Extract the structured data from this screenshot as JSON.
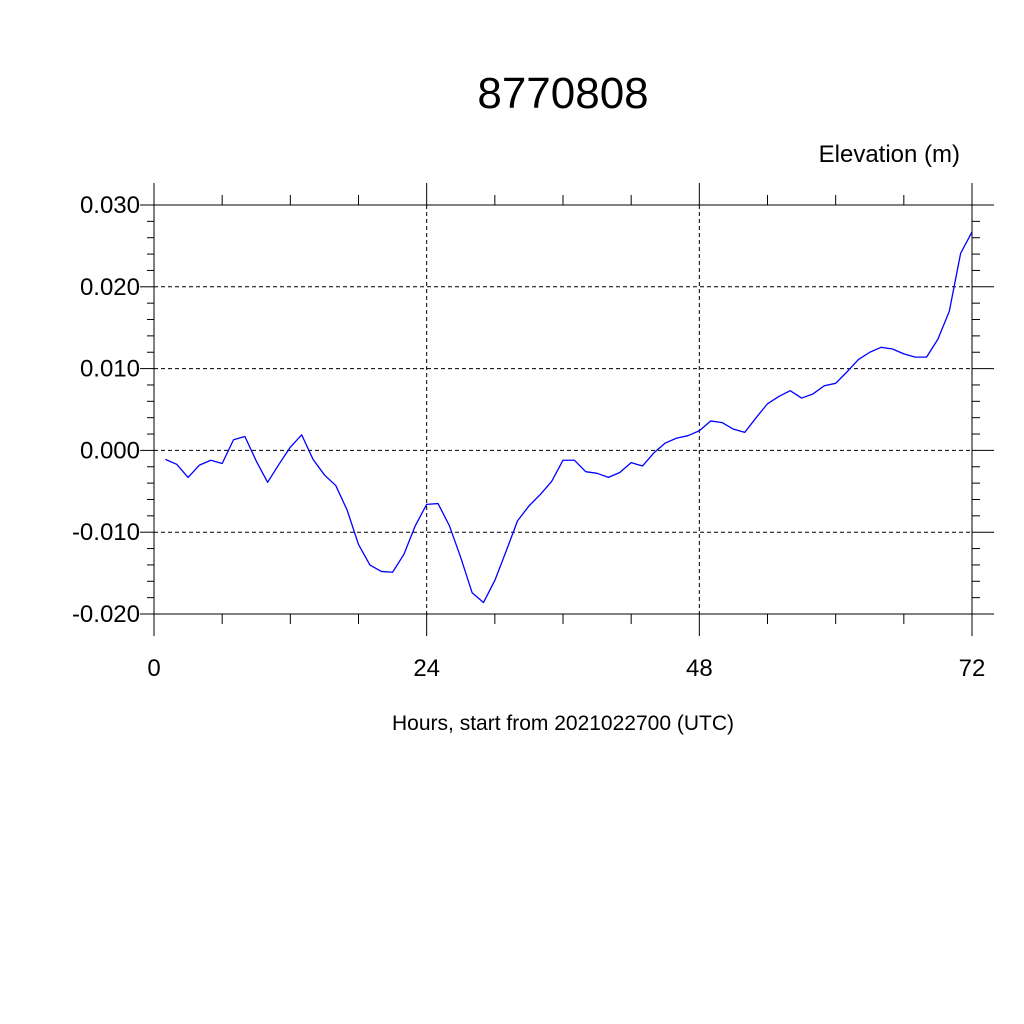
{
  "chart_data": {
    "type": "line",
    "title": "8770808",
    "units_label": "Elevation (m)",
    "xlabel": "Hours, start from 2021022700 (UTC)",
    "ylabel": "",
    "xlim": [
      0,
      72
    ],
    "ylim": [
      -0.02,
      0.03
    ],
    "x_ticks": [
      0,
      24,
      48,
      72
    ],
    "x_tick_labels": [
      "0",
      "24",
      "48",
      "72"
    ],
    "y_ticks": [
      -0.02,
      -0.01,
      0.0,
      0.01,
      0.02,
      0.03
    ],
    "y_tick_labels": [
      "-0.020",
      "-0.010",
      "0.000",
      "0.010",
      "0.020",
      "0.030"
    ],
    "grid": true,
    "series": [
      {
        "color": "#0000ff",
        "x": [
          1,
          2,
          3,
          4,
          5,
          6,
          7,
          8,
          9,
          10,
          11,
          12,
          13,
          14,
          15,
          16,
          17,
          18,
          19,
          20,
          21,
          22,
          23,
          24,
          25,
          26,
          27,
          28,
          29,
          30,
          31,
          32,
          33,
          34,
          35,
          36,
          37,
          38,
          39,
          40,
          41,
          42,
          43,
          44,
          45,
          46,
          47,
          48,
          49,
          50,
          51,
          52,
          53,
          54,
          55,
          56,
          57,
          58,
          59,
          60,
          61,
          62,
          63,
          64,
          65,
          66,
          67,
          68,
          69,
          70,
          71,
          72
        ],
        "values": [
          -0.0011,
          -0.0017,
          -0.0033,
          -0.0018,
          -0.0012,
          -0.0016,
          0.0013,
          0.0017,
          -0.0013,
          -0.0039,
          -0.0017,
          0.0004,
          0.0019,
          -0.0011,
          -0.003,
          -0.0043,
          -0.0073,
          -0.0115,
          -0.014,
          -0.0148,
          -0.0149,
          -0.0127,
          -0.0092,
          -0.0066,
          -0.0065,
          -0.0092,
          -0.0131,
          -0.0174,
          -0.0186,
          -0.0159,
          -0.0123,
          -0.0086,
          -0.0068,
          -0.0054,
          -0.0038,
          -0.0012,
          -0.0012,
          -0.0026,
          -0.0028,
          -0.0033,
          -0.0027,
          -0.0015,
          -0.0019,
          -0.0003,
          0.0009,
          0.0015,
          0.0018,
          0.0024,
          0.0036,
          0.0034,
          0.0026,
          0.0022,
          0.004,
          0.0057,
          0.0066,
          0.0073,
          0.0064,
          0.0069,
          0.0079,
          0.0082,
          0.0096,
          0.0111,
          0.012,
          0.0126,
          0.0124,
          0.0118,
          0.0114,
          0.0114,
          0.0136,
          0.017,
          0.0241,
          0.0267
        ]
      }
    ]
  }
}
